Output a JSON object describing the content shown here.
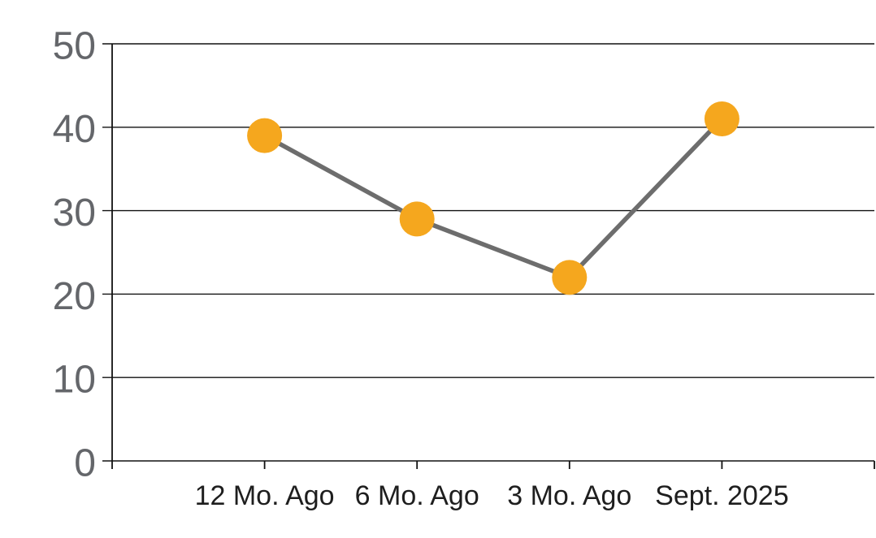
{
  "chart_data": {
    "type": "line",
    "categories": [
      "12 Mo. Ago",
      "6 Mo. Ago",
      "3 Mo. Ago",
      "Sept. 2025"
    ],
    "values": [
      39,
      29,
      22,
      41
    ],
    "title": "",
    "xlabel": "",
    "ylabel": "",
    "ylim": [
      0,
      50
    ],
    "yticks": [
      0,
      10,
      20,
      30,
      40,
      50
    ],
    "grid": true,
    "legend": false,
    "series_name": "",
    "colors": {
      "marker": "#F5A71E",
      "line": "#6D6D6D",
      "grid": "#111111",
      "axis": "#111111",
      "y_tick_label": "#64666A",
      "x_tick_label": "#1E1E1E",
      "background": "#FFFFFF"
    }
  }
}
